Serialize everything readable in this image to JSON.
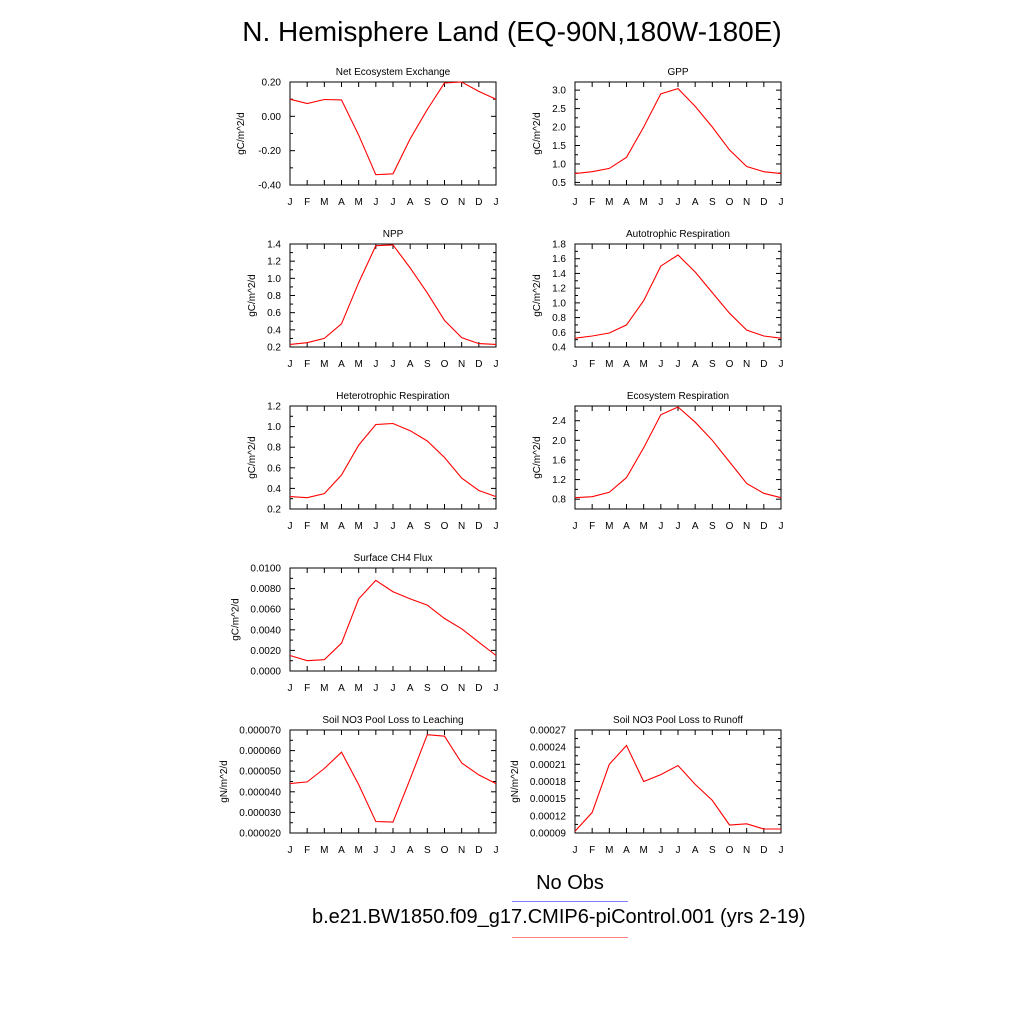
{
  "title": "N. Hemisphere Land (EQ-90N,180W-180E)",
  "legend": {
    "obs_label": "No Obs",
    "obs_color": "#8080ff",
    "case_label": "b.e21.BW1850.f09_g17.CMIP6-piControl.001 (yrs 2-19)",
    "case_color": "#ff8080"
  },
  "line_color": "#ff0000",
  "months": [
    "J",
    "F",
    "M",
    "A",
    "M",
    "J",
    "J",
    "A",
    "S",
    "O",
    "N",
    "D",
    "J"
  ],
  "chart_data": [
    {
      "type": "line",
      "title": "Net Ecosystem Exchange",
      "ylabel": "gC/m^2/d",
      "ylim": [
        -0.4,
        0.2
      ],
      "yticks": [
        0.2,
        0.0,
        -0.2,
        -0.4
      ],
      "ytick_labels": [
        "0.20",
        "0.00",
        "-0.20",
        "-0.40"
      ],
      "minor_y": [
        0.1,
        -0.1,
        -0.3
      ],
      "values": [
        0.1,
        0.075,
        0.098,
        0.096,
        -0.11,
        -0.34,
        -0.335,
        -0.13,
        0.04,
        0.195,
        0.2,
        0.145,
        0.1
      ]
    },
    {
      "type": "line",
      "title": "GPP",
      "ylabel": "gC/m^2/d",
      "ylim": [
        0.43,
        3.22
      ],
      "yticks": [
        3.0,
        2.5,
        2.0,
        1.5,
        1.0,
        0.5
      ],
      "ytick_labels": [
        "3.0",
        "2.5",
        "2.0",
        "1.5",
        "1.0",
        "0.5"
      ],
      "minor_y": [
        2.75,
        2.25,
        1.75,
        1.25,
        0.75
      ],
      "values": [
        0.74,
        0.79,
        0.88,
        1.18,
        2.0,
        2.9,
        3.04,
        2.56,
        2.0,
        1.38,
        0.93,
        0.79,
        0.74
      ]
    },
    {
      "type": "line",
      "title": "NPP",
      "ylabel": "gC/m^2/d",
      "ylim": [
        0.2,
        1.4
      ],
      "yticks": [
        1.4,
        1.2,
        1.0,
        0.8,
        0.6,
        0.4,
        0.2
      ],
      "ytick_labels": [
        "1.4",
        "1.2",
        "1.0",
        "0.8",
        "0.6",
        "0.4",
        "0.2"
      ],
      "minor_y": [
        1.3,
        1.1,
        0.9,
        0.7,
        0.5,
        0.3
      ],
      "values": [
        0.23,
        0.25,
        0.3,
        0.47,
        0.95,
        1.38,
        1.39,
        1.12,
        0.83,
        0.51,
        0.31,
        0.24,
        0.23
      ]
    },
    {
      "type": "line",
      "title": "Autotrophic Respiration",
      "ylabel": "gC/m^2/d",
      "ylim": [
        0.4,
        1.8
      ],
      "yticks": [
        1.8,
        1.6,
        1.4,
        1.2,
        1.0,
        0.8,
        0.6,
        0.4
      ],
      "ytick_labels": [
        "1.8",
        "1.6",
        "1.4",
        "1.2",
        "1.0",
        "0.8",
        "0.6",
        "0.4"
      ],
      "minor_y": [
        1.7,
        1.5,
        1.3,
        1.1,
        0.9,
        0.7,
        0.5
      ],
      "values": [
        0.52,
        0.55,
        0.59,
        0.7,
        1.03,
        1.5,
        1.65,
        1.42,
        1.14,
        0.86,
        0.63,
        0.55,
        0.52
      ]
    },
    {
      "type": "line",
      "title": "Heterotrophic Respiration",
      "ylabel": "gC/m^2/d",
      "ylim": [
        0.2,
        1.2
      ],
      "yticks": [
        1.2,
        1.0,
        0.8,
        0.6,
        0.4,
        0.2
      ],
      "ytick_labels": [
        "1.2",
        "1.0",
        "0.8",
        "0.6",
        "0.4",
        "0.2"
      ],
      "minor_y": [
        1.1,
        0.9,
        0.7,
        0.5,
        0.3
      ],
      "values": [
        0.32,
        0.31,
        0.35,
        0.53,
        0.82,
        1.02,
        1.03,
        0.96,
        0.86,
        0.7,
        0.5,
        0.38,
        0.32
      ]
    },
    {
      "type": "line",
      "title": "Ecosystem Respiration",
      "ylabel": "gC/m^2/d",
      "ylim": [
        0.6,
        2.7
      ],
      "yticks": [
        2.4,
        2.0,
        1.6,
        1.2,
        0.8
      ],
      "ytick_labels": [
        "2.4",
        "2.0",
        "1.6",
        "1.2",
        "0.8"
      ],
      "minor_y": [
        2.6,
        2.2,
        1.8,
        1.4,
        1.0,
        0.6
      ],
      "values": [
        0.83,
        0.85,
        0.94,
        1.24,
        1.85,
        2.52,
        2.68,
        2.37,
        2.0,
        1.56,
        1.12,
        0.92,
        0.83
      ]
    },
    {
      "type": "line",
      "title": "Surface CH4 Flux",
      "ylabel": "gC/m^2/d",
      "ylim": [
        0.0,
        0.01
      ],
      "yticks": [
        0.01,
        0.008,
        0.006,
        0.004,
        0.002,
        0.0
      ],
      "ytick_labels": [
        "0.0100",
        "0.0080",
        "0.0060",
        "0.0040",
        "0.0020",
        "0.0000"
      ],
      "minor_y": [
        0.009,
        0.007,
        0.005,
        0.003,
        0.001
      ],
      "values": [
        0.0015,
        0.001,
        0.0011,
        0.0027,
        0.007,
        0.0088,
        0.0077,
        0.007,
        0.0064,
        0.0051,
        0.0041,
        0.0028,
        0.0015
      ]
    },
    {
      "type": "line",
      "title": "Soil NO3 Pool Loss to Leaching",
      "ylabel": "gN/m^2/d",
      "ylim": [
        2e-05,
        7e-05
      ],
      "yticks": [
        7e-05,
        6e-05,
        5e-05,
        4e-05,
        3e-05,
        2e-05
      ],
      "ytick_labels": [
        "0.000070",
        "0.000060",
        "0.000050",
        "0.000040",
        "0.000030",
        "0.000020"
      ],
      "minor_y": [
        6.5e-05,
        5.5e-05,
        4.5e-05,
        3.5e-05,
        2.5e-05
      ],
      "values": [
        4.4e-05,
        4.48e-05,
        5.13e-05,
        5.92e-05,
        4.35e-05,
        2.56e-05,
        2.53e-05,
        4.63e-05,
        6.77e-05,
        6.7e-05,
        5.4e-05,
        4.82e-05,
        4.4e-05
      ]
    },
    {
      "type": "line",
      "title": "Soil NO3 Pool Loss to Runoff",
      "ylabel": "gN/m^2/d",
      "ylim": [
        9e-05,
        0.00027
      ],
      "yticks": [
        0.00027,
        0.00024,
        0.00021,
        0.00018,
        0.00015,
        0.00012,
        9e-05
      ],
      "ytick_labels": [
        "0.00027",
        "0.00024",
        "0.00021",
        "0.00018",
        "0.00015",
        "0.00012",
        "0.00009"
      ],
      "minor_y": [
        0.000255,
        0.000225,
        0.000195,
        0.000165,
        0.000135,
        0.000105
      ],
      "values": [
        9.3e-05,
        0.000126,
        0.00021,
        0.000243,
        0.00018,
        0.000192,
        0.000208,
        0.000175,
        0.000147,
        0.000104,
        0.000106,
        9.7e-05,
        9.7e-05
      ]
    }
  ]
}
